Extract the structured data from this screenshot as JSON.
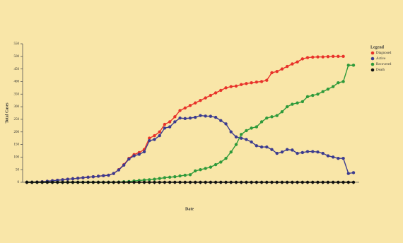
{
  "chart_data": {
    "type": "line",
    "x_label": "Date",
    "y_label": "Total Cases",
    "legend_title": "Legend",
    "legend": "top-right",
    "ylim": [
      0,
      550
    ],
    "yticks": [
      0,
      50,
      100,
      150,
      200,
      250,
      300,
      350,
      400,
      450,
      500,
      550
    ],
    "series": [
      {
        "name": "Diagnosed",
        "color": "#e8322a",
        "values": [
          0,
          0,
          1,
          2,
          4,
          6,
          8,
          10,
          12,
          14,
          16,
          18,
          20,
          22,
          24,
          26,
          28,
          35,
          50,
          70,
          95,
          110,
          118,
          130,
          175,
          185,
          200,
          230,
          240,
          260,
          285,
          295,
          305,
          315,
          325,
          335,
          345,
          355,
          365,
          375,
          380,
          382,
          388,
          392,
          395,
          398,
          400,
          405,
          435,
          440,
          450,
          460,
          470,
          478,
          490,
          495,
          497,
          498,
          498,
          499,
          500,
          500,
          500,
          null,
          null
        ]
      },
      {
        "name": "Active",
        "color": "#3b3b8f",
        "values": [
          0,
          0,
          1,
          2,
          4,
          6,
          8,
          10,
          12,
          14,
          16,
          18,
          20,
          22,
          24,
          26,
          28,
          35,
          49,
          68,
          92,
          105,
          111,
          121,
          165,
          170,
          185,
          215,
          220,
          240,
          255,
          253,
          255,
          258,
          265,
          263,
          262,
          258,
          245,
          232,
          200,
          180,
          175,
          170,
          160,
          145,
          140,
          140,
          130,
          115,
          120,
          130,
          128,
          115,
          118,
          122,
          122,
          120,
          115,
          105,
          100,
          95,
          95,
          35,
          38
        ]
      },
      {
        "name": "Recovered",
        "color": "#2e9a3a",
        "values": [
          0,
          0,
          0,
          0,
          0,
          0,
          0,
          0,
          0,
          0,
          0,
          0,
          0,
          0,
          0,
          0,
          0,
          0,
          1,
          2,
          3,
          5,
          7,
          9,
          10,
          12,
          15,
          18,
          20,
          22,
          25,
          28,
          30,
          45,
          50,
          55,
          60,
          70,
          80,
          95,
          120,
          150,
          190,
          205,
          215,
          220,
          240,
          255,
          260,
          265,
          280,
          300,
          310,
          315,
          320,
          340,
          345,
          350,
          360,
          370,
          380,
          395,
          400,
          465,
          465
        ]
      },
      {
        "name": "Death",
        "color": "#111111",
        "values": [
          0,
          0,
          0,
          0,
          0,
          0,
          0,
          0,
          0,
          0,
          0,
          0,
          0,
          0,
          0,
          0,
          0,
          0,
          0,
          0,
          0,
          0,
          0,
          0,
          0,
          0,
          0,
          0,
          0,
          0,
          0,
          0,
          0,
          0,
          0,
          0,
          0,
          0,
          0,
          0,
          0,
          0,
          0,
          0,
          0,
          0,
          0,
          0,
          0,
          0,
          0,
          0,
          0,
          0,
          0,
          0,
          0,
          0,
          0,
          0,
          0,
          0,
          0,
          0,
          0
        ]
      }
    ]
  }
}
